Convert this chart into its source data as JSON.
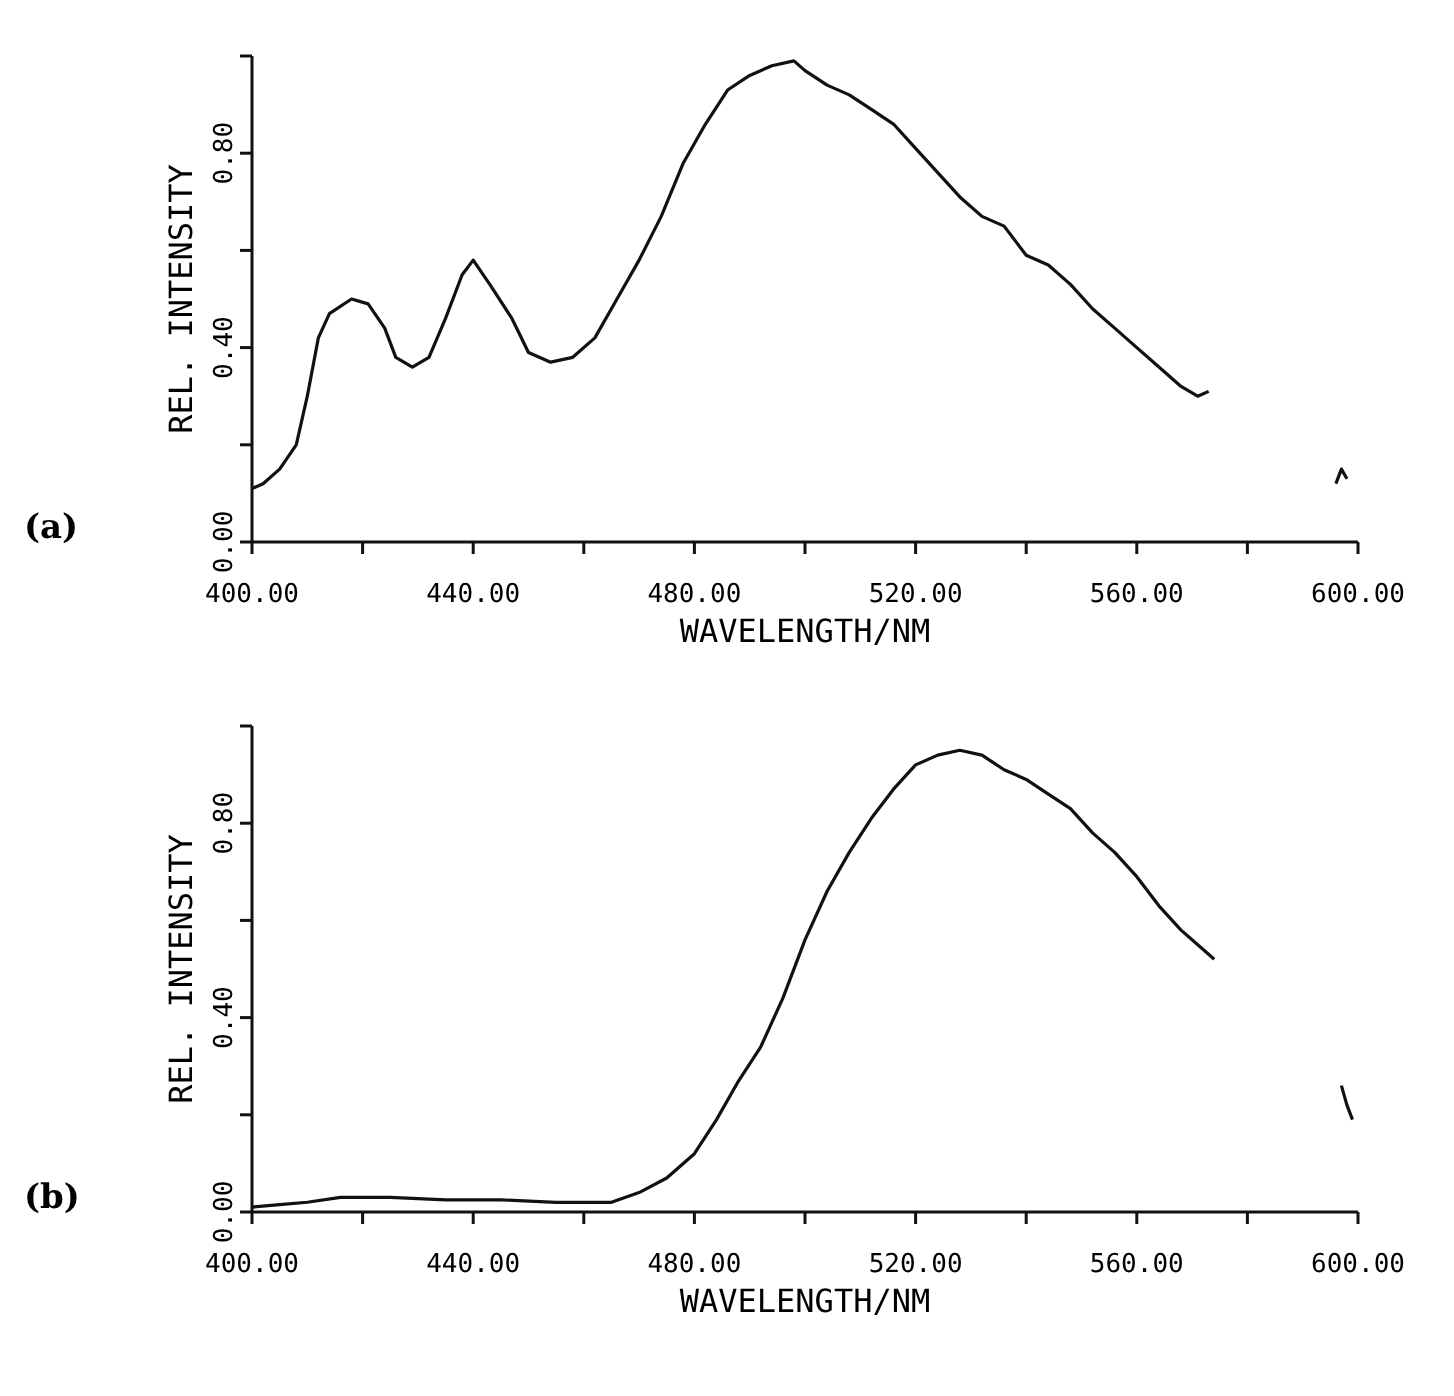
{
  "chart_data": [
    {
      "type": "line",
      "xlabel": "WAVELENGTH/NM",
      "ylabel": "REL. INTENSITY",
      "annotations": [
        "(a)"
      ],
      "xlim": [
        400,
        600
      ],
      "ylim": [
        0,
        1
      ],
      "xticks": [
        {
          "value": 400,
          "label": "400.00"
        },
        {
          "value": 420,
          "label": null
        },
        {
          "value": 440,
          "label": "440.00"
        },
        {
          "value": 460,
          "label": null
        },
        {
          "value": 480,
          "label": "480.00"
        },
        {
          "value": 500,
          "label": null
        },
        {
          "value": 520,
          "label": "520.00"
        },
        {
          "value": 540,
          "label": null
        },
        {
          "value": 560,
          "label": "560.00"
        },
        {
          "value": 580,
          "label": null
        },
        {
          "value": 600,
          "label": "600.00"
        }
      ],
      "yticks": [
        {
          "value": 0,
          "label": "0.00"
        },
        {
          "value": 0.2,
          "label": null
        },
        {
          "value": 0.4,
          "label": "0.40"
        },
        {
          "value": 0.6,
          "label": null
        },
        {
          "value": 0.8,
          "label": "0.80"
        },
        {
          "value": 1,
          "label": null
        }
      ],
      "marker": "none",
      "line_style": "solid",
      "series": [
        {
          "color": "#111111",
          "x": [
            400,
            402,
            405,
            408,
            410,
            412,
            414,
            418,
            421,
            424,
            426,
            429,
            432,
            435,
            438,
            440,
            443,
            447,
            450,
            454,
            458,
            462,
            466,
            470,
            474,
            478,
            482,
            486,
            490,
            494,
            498,
            500,
            504,
            508,
            512,
            516,
            520,
            524,
            528,
            532,
            536,
            540,
            544,
            548,
            552,
            556,
            560,
            564,
            568,
            571,
            573
          ],
          "values": [
            0.11,
            0.12,
            0.15,
            0.2,
            0.3,
            0.42,
            0.47,
            0.5,
            0.49,
            0.44,
            0.38,
            0.36,
            0.38,
            0.46,
            0.55,
            0.58,
            0.53,
            0.46,
            0.39,
            0.37,
            0.38,
            0.42,
            0.5,
            0.58,
            0.67,
            0.78,
            0.86,
            0.93,
            0.96,
            0.98,
            0.99,
            0.97,
            0.94,
            0.92,
            0.89,
            0.86,
            0.81,
            0.76,
            0.71,
            0.67,
            0.65,
            0.59,
            0.57,
            0.53,
            0.48,
            0.44,
            0.4,
            0.36,
            0.32,
            0.3,
            0.31
          ]
        },
        {
          "color": "#111111",
          "x": [
            596,
            597,
            598
          ],
          "values": [
            0.12,
            0.15,
            0.13
          ]
        }
      ]
    },
    {
      "type": "line",
      "xlabel": "WAVELENGTH/NM",
      "ylabel": "REL. INTENSITY",
      "annotations": [
        "(b)"
      ],
      "xlim": [
        400,
        600
      ],
      "ylim": [
        0,
        1
      ],
      "xticks": [
        {
          "value": 400,
          "label": "400.00"
        },
        {
          "value": 420,
          "label": null
        },
        {
          "value": 440,
          "label": "440.00"
        },
        {
          "value": 460,
          "label": null
        },
        {
          "value": 480,
          "label": "480.00"
        },
        {
          "value": 500,
          "label": null
        },
        {
          "value": 520,
          "label": "520.00"
        },
        {
          "value": 540,
          "label": null
        },
        {
          "value": 560,
          "label": "560.00"
        },
        {
          "value": 580,
          "label": null
        },
        {
          "value": 600,
          "label": "600.00"
        }
      ],
      "yticks": [
        {
          "value": 0,
          "label": "0.00"
        },
        {
          "value": 0.2,
          "label": null
        },
        {
          "value": 0.4,
          "label": "0.40"
        },
        {
          "value": 0.6,
          "label": null
        },
        {
          "value": 0.8,
          "label": "0.80"
        },
        {
          "value": 1,
          "label": null
        }
      ],
      "marker": "none",
      "line_style": "solid",
      "series": [
        {
          "color": "#111111",
          "x": [
            400,
            405,
            410,
            416,
            425,
            435,
            445,
            455,
            465,
            470,
            475,
            480,
            484,
            488,
            492,
            496,
            500,
            504,
            508,
            512,
            516,
            520,
            524,
            528,
            532,
            536,
            540,
            544,
            548,
            552,
            556,
            560,
            564,
            568,
            572,
            574
          ],
          "values": [
            0.01,
            0.015,
            0.02,
            0.03,
            0.03,
            0.025,
            0.025,
            0.02,
            0.02,
            0.04,
            0.07,
            0.12,
            0.19,
            0.27,
            0.34,
            0.44,
            0.56,
            0.66,
            0.74,
            0.81,
            0.87,
            0.92,
            0.94,
            0.95,
            0.94,
            0.91,
            0.89,
            0.86,
            0.83,
            0.78,
            0.74,
            0.69,
            0.63,
            0.58,
            0.54,
            0.52
          ]
        },
        {
          "color": "#111111",
          "x": [
            597,
            598,
            599
          ],
          "values": [
            0.26,
            0.22,
            0.19
          ]
        }
      ]
    }
  ]
}
